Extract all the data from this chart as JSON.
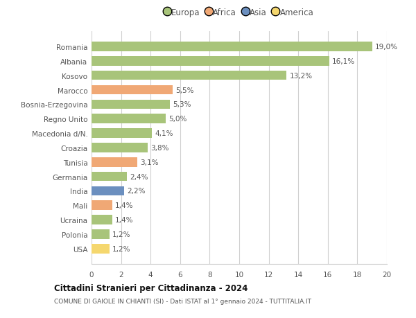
{
  "categories": [
    "USA",
    "Polonia",
    "Ucraina",
    "Mali",
    "India",
    "Germania",
    "Tunisia",
    "Croazia",
    "Macedonia d/N.",
    "Regno Unito",
    "Bosnia-Erzegovina",
    "Marocco",
    "Kosovo",
    "Albania",
    "Romania"
  ],
  "values": [
    1.2,
    1.2,
    1.4,
    1.4,
    2.2,
    2.4,
    3.1,
    3.8,
    4.1,
    5.0,
    5.3,
    5.5,
    13.2,
    16.1,
    19.0
  ],
  "labels": [
    "1,2%",
    "1,2%",
    "1,4%",
    "1,4%",
    "2,2%",
    "2,4%",
    "3,1%",
    "3,8%",
    "4,1%",
    "5,0%",
    "5,3%",
    "5,5%",
    "13,2%",
    "16,1%",
    "19,0%"
  ],
  "colors": [
    "#f5d76e",
    "#a8c47a",
    "#a8c47a",
    "#f0a875",
    "#6b8fbf",
    "#a8c47a",
    "#f0a875",
    "#a8c47a",
    "#a8c47a",
    "#a8c47a",
    "#a8c47a",
    "#f0a875",
    "#a8c47a",
    "#a8c47a",
    "#a8c47a"
  ],
  "legend_labels": [
    "Europa",
    "Africa",
    "Asia",
    "America"
  ],
  "legend_colors": [
    "#a8c47a",
    "#f0a875",
    "#6b8fbf",
    "#f5d76e"
  ],
  "title": "Cittadini Stranieri per Cittadinanza - 2024",
  "subtitle": "COMUNE DI GAIOLE IN CHIANTI (SI) - Dati ISTAT al 1° gennaio 2024 - TUTTITALIA.IT",
  "xlim": [
    0,
    20
  ],
  "xticks": [
    0,
    2,
    4,
    6,
    8,
    10,
    12,
    14,
    16,
    18,
    20
  ],
  "background_color": "#ffffff",
  "grid_color": "#d0d0d0",
  "bar_height": 0.65
}
